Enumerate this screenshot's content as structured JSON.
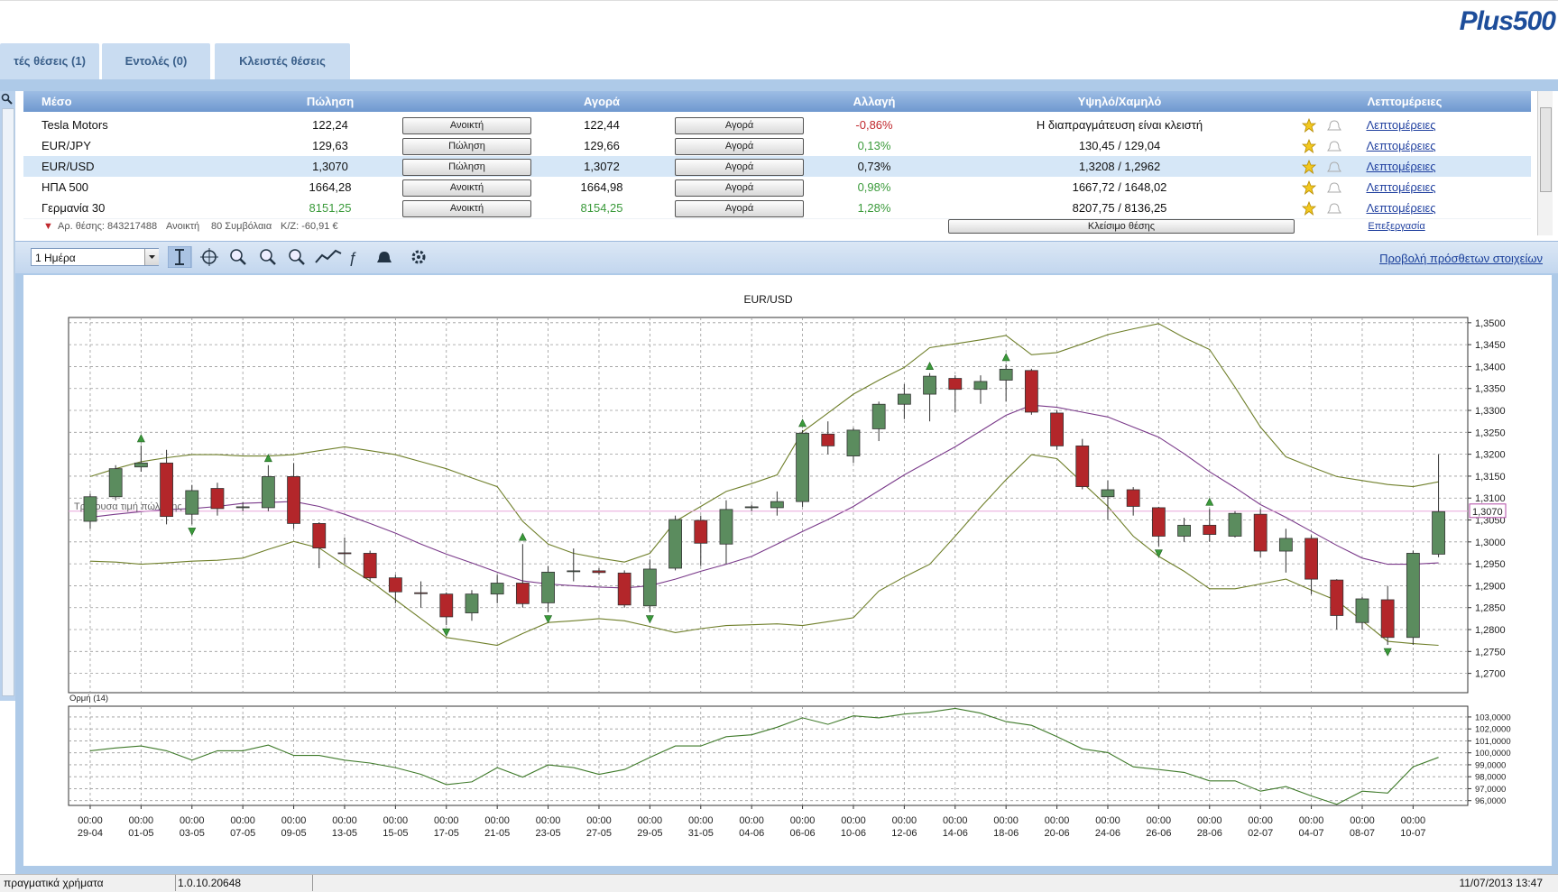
{
  "logo": "Plus500",
  "tabs": [
    "τές θέσεις (1)",
    "Εντολές (0)",
    "Κλειστές θέσεις"
  ],
  "table": {
    "headers": [
      "Μέσο",
      "Πώληση",
      "Αγορά",
      "Αλλαγή",
      "Υψηλό/Χαμηλό",
      "Λεπτομέρειες"
    ],
    "rows": [
      {
        "instrument": "Tesla Motors",
        "sell": "122,24",
        "sell_button": "Ανοικτή",
        "buy": "122,44",
        "buy_button": "Αγορά",
        "change": "-0,86%",
        "change_color": "#c0282d",
        "price_color": "#111111",
        "high_low": "Η διαπραγμάτευση είναι κλειστή",
        "details": "Λεπτομέρειες"
      },
      {
        "instrument": "EUR/JPY",
        "sell": "129,63",
        "sell_button": "Πώληση",
        "buy": "129,66",
        "buy_button": "Αγορά",
        "change": "0,13%",
        "change_color": "#3a9a3a",
        "price_color": "#111111",
        "high_low": "130,45 / 129,04",
        "details": "Λεπτομέρειες"
      },
      {
        "instrument": "EUR/USD",
        "sell": "1,3070",
        "sell_button": "Πώληση",
        "buy": "1,3072",
        "buy_button": "Αγορά",
        "change": "0,73%",
        "change_color": "#111111",
        "price_color": "#111111",
        "high_low": "1,3208 / 1,2962",
        "details": "Λεπτομέρειες"
      },
      {
        "instrument": "ΗΠΑ 500",
        "sell": "1664,28",
        "sell_button": "Ανοικτή",
        "buy": "1664,98",
        "buy_button": "Αγορά",
        "change": "0,98%",
        "change_color": "#3a9a3a",
        "price_color": "#111111",
        "high_low": "1667,72 / 1648,02",
        "details": "Λεπτομέρειες"
      },
      {
        "instrument": "Γερμανία 30",
        "sell": "8151,25",
        "sell_button": "Ανοικτή",
        "buy": "8154,25",
        "buy_button": "Αγορά",
        "change": "1,28%",
        "change_color": "#3a9a3a",
        "price_color": "#3a9a3a",
        "high_low": "8207,75 / 8136,25",
        "details": "Λεπτομέρειες"
      }
    ],
    "selected_row": 2
  },
  "position": {
    "marker": "▼",
    "id_label": "Αρ. θέσης: 843217488",
    "status": "Ανοικτή",
    "contracts": "80 Συμβόλαια",
    "pl": "Κ/Ζ: -60,91 €",
    "close_button": "Κλείσιμο θέσης",
    "edit": "Επεξεργασία"
  },
  "toolbar": {
    "period": "1 Ημέρα",
    "more_link": "Προβολή πρόσθετων στοιχείων"
  },
  "status_bar": {
    "account": "πραγματικά χρήματα",
    "version": "1.0.10.20648",
    "datetime": "11/07/2013 13:47"
  },
  "chart_data": [
    {
      "type": "candlestick",
      "title": "EUR/USD",
      "categories": [
        "29-04",
        null,
        "01-05",
        null,
        "03-05",
        null,
        "07-05",
        null,
        "09-05",
        null,
        "13-05",
        null,
        "15-05",
        null,
        "17-05",
        null,
        "21-05",
        null,
        "23-05",
        null,
        "27-05",
        null,
        "29-05",
        null,
        "31-05",
        null,
        "04-06",
        null,
        "06-06",
        null,
        "10-06",
        null,
        "12-06",
        null,
        "14-06",
        null,
        "18-06",
        null,
        "20-06",
        null,
        "24-06",
        null,
        "26-06",
        null,
        "28-06",
        null,
        "02-07",
        null,
        "04-07",
        null,
        "08-07",
        null,
        "10-07",
        null
      ],
      "x_tick_time": "00:00",
      "open": [
        1.3047,
        1.3103,
        1.3171,
        1.318,
        1.3063,
        1.3122,
        1.3078,
        1.3078,
        1.3149,
        1.3042,
        1.2975,
        1.2974,
        1.2918,
        1.2884,
        1.2881,
        1.2838,
        1.2881,
        1.2906,
        1.2861,
        1.2933,
        1.2934,
        1.2929,
        1.2854,
        1.294,
        1.3049,
        1.2995,
        1.3078,
        1.3078,
        1.3092,
        1.3246,
        1.3196,
        1.3258,
        1.3314,
        1.3337,
        1.3373,
        1.3348,
        1.3369,
        1.3391,
        1.3294,
        1.3219,
        1.3103,
        1.3119,
        1.3078,
        1.3013,
        1.3038,
        1.3013,
        1.3063,
        1.2979,
        1.3008,
        1.2913,
        1.2816,
        1.2868,
        1.2782,
        1.2972
      ],
      "high": [
        1.311,
        1.3175,
        1.322,
        1.321,
        1.313,
        1.3135,
        1.309,
        1.3175,
        1.318,
        1.3045,
        1.301,
        1.298,
        1.2925,
        1.291,
        1.2885,
        1.289,
        1.2925,
        1.2995,
        1.2945,
        1.2985,
        1.294,
        1.2935,
        1.296,
        1.306,
        1.306,
        1.3095,
        1.3085,
        1.3115,
        1.3255,
        1.3275,
        1.326,
        1.332,
        1.336,
        1.3385,
        1.338,
        1.338,
        1.3405,
        1.3395,
        1.33,
        1.3235,
        1.314,
        1.3125,
        1.308,
        1.3055,
        1.3075,
        1.307,
        1.3075,
        1.303,
        1.3015,
        1.2915,
        1.2875,
        1.29,
        1.298,
        1.32
      ],
      "low": [
        1.303,
        1.3095,
        1.316,
        1.304,
        1.304,
        1.306,
        1.307,
        1.307,
        1.303,
        1.294,
        1.295,
        1.291,
        1.286,
        1.285,
        1.281,
        1.282,
        1.286,
        1.285,
        1.284,
        1.291,
        1.2925,
        1.285,
        1.284,
        1.2935,
        1.2945,
        1.295,
        1.307,
        1.306,
        1.308,
        1.32,
        1.318,
        1.323,
        1.328,
        1.3275,
        1.3295,
        1.3315,
        1.332,
        1.329,
        1.321,
        1.312,
        1.305,
        1.306,
        1.299,
        1.3,
        1.3,
        1.301,
        1.2965,
        1.293,
        1.288,
        1.28,
        1.28,
        1.2765,
        1.2765,
        1.2965
      ],
      "close": [
        1.3103,
        1.3167,
        1.318,
        1.3058,
        1.3117,
        1.3076,
        1.308,
        1.3149,
        1.3042,
        1.2986,
        1.2973,
        1.2918,
        1.2886,
        1.2883,
        1.2829,
        1.2881,
        1.2906,
        1.2859,
        1.2931,
        1.2934,
        1.293,
        1.2856,
        1.2938,
        1.3051,
        1.2997,
        1.3074,
        1.308,
        1.3092,
        1.3248,
        1.3219,
        1.3255,
        1.3314,
        1.3337,
        1.3378,
        1.3348,
        1.3366,
        1.3394,
        1.3296,
        1.3219,
        1.3126,
        1.3119,
        1.3081,
        1.3013,
        1.3038,
        1.3017,
        1.3065,
        1.2979,
        1.3008,
        1.2915,
        1.2832,
        1.287,
        1.2782,
        1.2974,
        1.3069
      ],
      "up_color": "#5b8c5e",
      "down_color": "#b3262a",
      "series": [
        {
          "color": "#7a3a8a",
          "values": [
            1.3056,
            1.3063,
            1.3069,
            1.3074,
            1.3076,
            1.3081,
            1.3088,
            1.309,
            1.3092,
            1.3081,
            1.3063,
            1.3042,
            1.302,
            1.2995,
            1.2972,
            1.2952,
            1.2931,
            1.2911,
            1.2904,
            1.29,
            1.2897,
            1.2895,
            1.29,
            1.2915,
            1.2933,
            1.2949,
            1.2967,
            1.2995,
            1.3024,
            1.3051,
            1.3081,
            1.3117,
            1.3153,
            1.3185,
            1.3217,
            1.3253,
            1.3289,
            1.3312,
            1.3307,
            1.3296,
            1.3285,
            1.3262,
            1.3239,
            1.3201,
            1.316,
            1.3124,
            1.3085,
            1.3056,
            1.3024,
            1.2992,
            1.2963,
            1.2949,
            1.2949,
            1.2952
          ]
        },
        {
          "color": "#6f7f2a",
          "values": [
            1.3149,
            1.3167,
            1.3183,
            1.3192,
            1.3199,
            1.3199,
            1.3196,
            1.3196,
            1.3199,
            1.3208,
            1.3217,
            1.3208,
            1.3199,
            1.3183,
            1.3167,
            1.3146,
            1.3126,
            1.3047,
            1.2995,
            1.2974,
            1.2963,
            1.2954,
            1.2974,
            1.3047,
            1.3081,
            1.3115,
            1.3133,
            1.3153,
            1.3251,
            1.3294,
            1.3337,
            1.3369,
            1.3398,
            1.3443,
            1.3452,
            1.3461,
            1.3471,
            1.3427,
            1.3432,
            1.3452,
            1.3473,
            1.3486,
            1.3498,
            1.3466,
            1.3439,
            1.3353,
            1.3262,
            1.3194,
            1.3171,
            1.3149,
            1.314,
            1.3131,
            1.3126,
            1.3137
          ]
        },
        {
          "color": "#6f7f2a",
          "values": [
            1.2956,
            1.2954,
            1.2949,
            1.2952,
            1.2956,
            1.2958,
            1.2963,
            1.2983,
            1.3001,
            1.2986,
            1.2947,
            1.2911,
            1.2868,
            1.2825,
            1.2782,
            1.2773,
            1.2764,
            1.2791,
            1.2816,
            1.282,
            1.2825,
            1.282,
            1.2807,
            1.2793,
            1.2802,
            1.2809,
            1.2811,
            1.2813,
            1.2809,
            1.2818,
            1.2827,
            1.2888,
            1.292,
            1.2949,
            1.3013,
            1.3079,
            1.3142,
            1.3199,
            1.319,
            1.3135,
            1.3081,
            1.3013,
            1.2967,
            1.2933,
            1.2893,
            1.2893,
            1.2904,
            1.2915,
            1.289,
            1.2866,
            1.282,
            1.2773,
            1.2768,
            1.2764
          ]
        }
      ],
      "signals_up": [
        2,
        7,
        17,
        28,
        33,
        36,
        44
      ],
      "signals_down": [
        4,
        14,
        18,
        22,
        42,
        51
      ],
      "signal_color": "#3a9a3a",
      "current_price": {
        "value": 1.307,
        "label": "1,3070"
      },
      "current_price_text": "Τρέχουσα τιμή πώλησης",
      "current_price_color": "#e8a6dc",
      "ylim": [
        1.2656,
        1.3512
      ],
      "yticks": [
        {
          "value": 1.27,
          "label": "1,2700"
        },
        {
          "value": 1.275,
          "label": "1,2750"
        },
        {
          "value": 1.28,
          "label": "1,2800"
        },
        {
          "value": 1.285,
          "label": "1,2850"
        },
        {
          "value": 1.29,
          "label": "1,2900"
        },
        {
          "value": 1.295,
          "label": "1,2950"
        },
        {
          "value": 1.3,
          "label": "1,3000"
        },
        {
          "value": 1.305,
          "label": "1,3050"
        },
        {
          "value": 1.31,
          "label": "1,3100"
        },
        {
          "value": 1.315,
          "label": "1,3150"
        },
        {
          "value": 1.32,
          "label": "1,3200"
        },
        {
          "value": 1.325,
          "label": "1,3250"
        },
        {
          "value": 1.33,
          "label": "1,3300"
        },
        {
          "value": 1.335,
          "label": "1,3350"
        },
        {
          "value": 1.34,
          "label": "1,3400"
        },
        {
          "value": 1.345,
          "label": "1,3450"
        },
        {
          "value": 1.35,
          "label": "1,3500"
        }
      ],
      "grid": true
    },
    {
      "type": "line",
      "title": "Ορμή (14)",
      "series": [
        {
          "color": "#3f7a2a",
          "values": [
            100.17,
            100.41,
            100.57,
            100.17,
            99.39,
            100.17,
            100.17,
            100.65,
            99.78,
            99.78,
            99.39,
            99.15,
            98.76,
            98.2,
            97.34,
            97.57,
            98.76,
            97.97,
            98.99,
            98.76,
            98.2,
            98.6,
            99.62,
            100.57,
            100.57,
            101.35,
            101.51,
            102.14,
            102.93,
            102.38,
            103.09,
            102.93,
            103.24,
            103.4,
            103.72,
            103.32,
            102.61,
            102.3,
            101.35,
            100.33,
            100.02,
            98.83,
            98.6,
            98.36,
            97.65,
            97.65,
            96.79,
            97.18,
            96.39,
            95.69,
            96.79,
            96.63,
            98.83,
            99.62
          ]
        }
      ],
      "ylim": [
        95.6,
        103.9
      ],
      "yticks": [
        {
          "value": 96,
          "label": "96,0000"
        },
        {
          "value": 97,
          "label": "97,0000"
        },
        {
          "value": 98,
          "label": "98,0000"
        },
        {
          "value": 99,
          "label": "99,0000"
        },
        {
          "value": 100,
          "label": "100,0000"
        },
        {
          "value": 101,
          "label": "101,0000"
        },
        {
          "value": 102,
          "label": "102,0000"
        },
        {
          "value": 103,
          "label": "103,0000"
        }
      ],
      "grid": true
    }
  ]
}
